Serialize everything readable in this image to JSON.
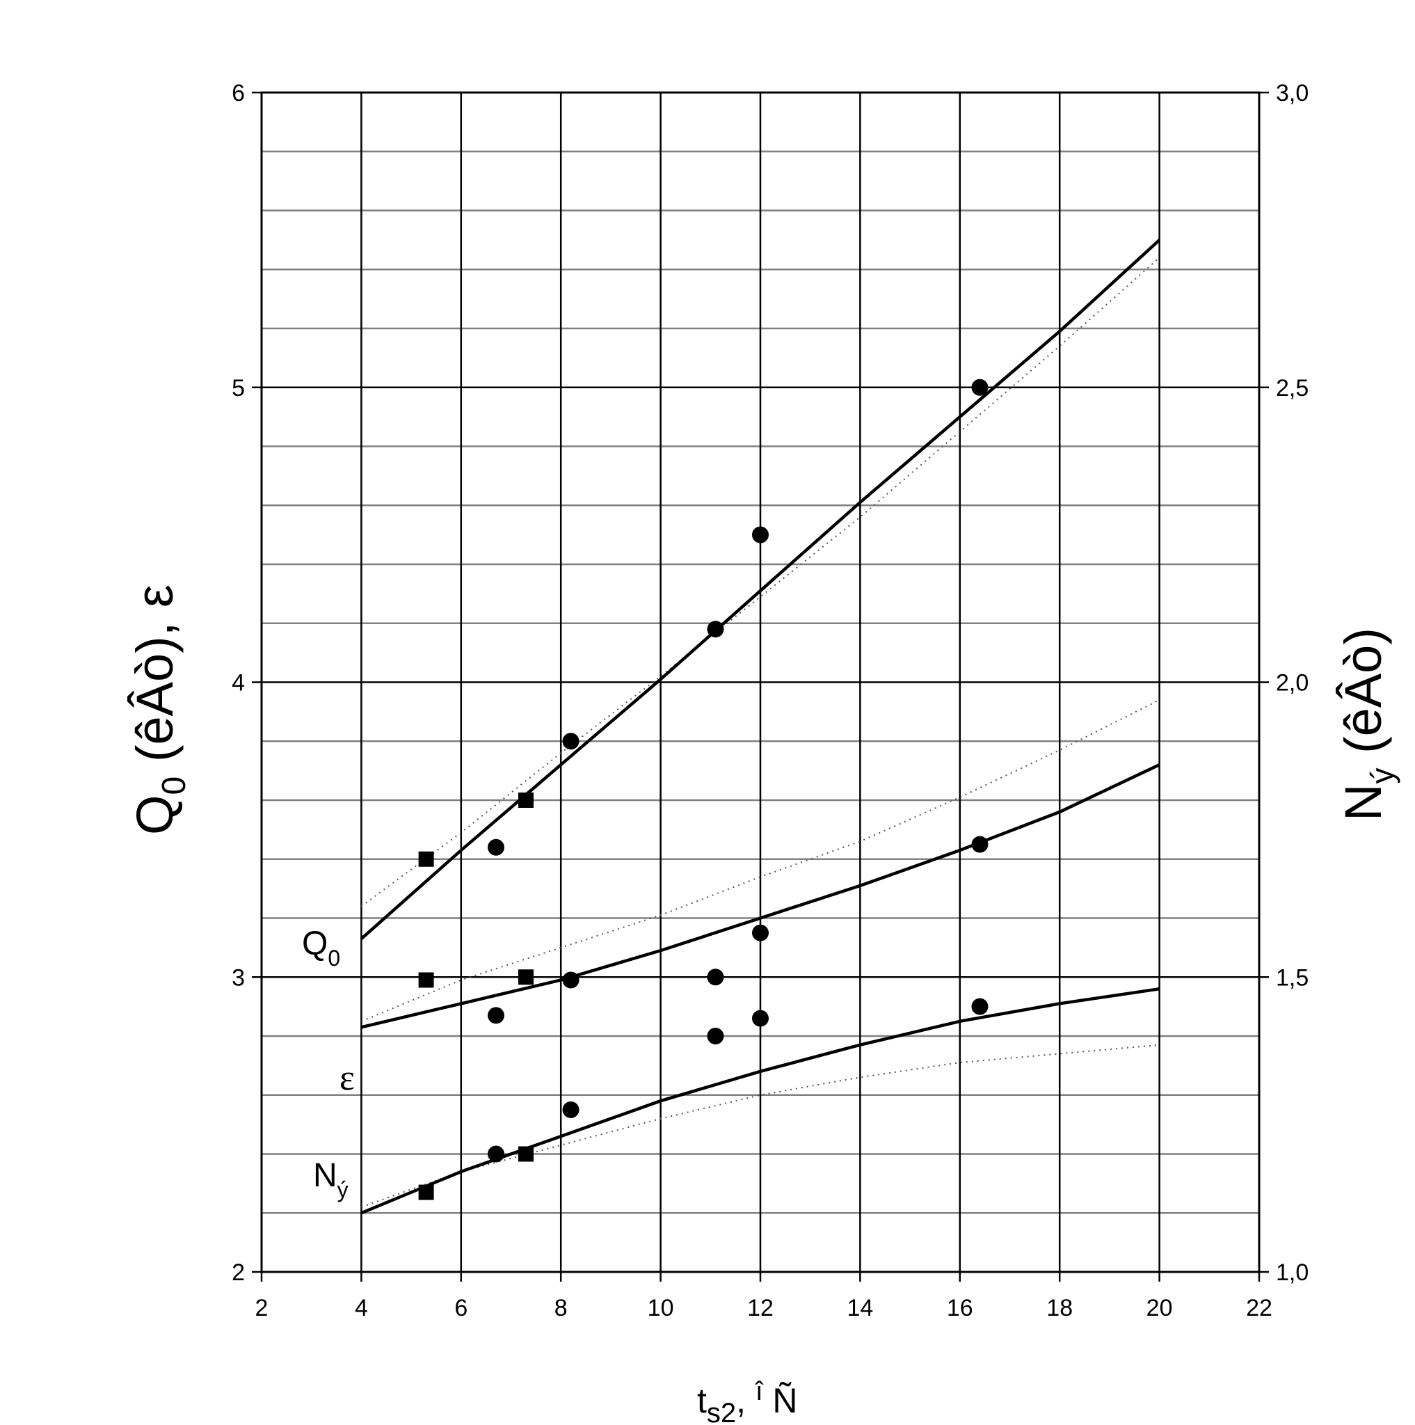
{
  "chart_data": {
    "type": "scatter",
    "x_axis": {
      "label_main": "t",
      "label_sub": "s2",
      "label_suffix": ", ",
      "label_sup": "î",
      "label_unit": " Ñ",
      "min": 2,
      "max": 22,
      "ticks": [
        2,
        4,
        6,
        8,
        10,
        12,
        14,
        16,
        18,
        20,
        22
      ],
      "tick_labels": [
        "2",
        "4",
        "6",
        "8",
        "10",
        "12",
        "14",
        "16",
        "18",
        "20",
        "22"
      ]
    },
    "y_left_axis": {
      "label_main": "Q",
      "label_sub": "0",
      "label_suffix": " (êÂò), ε",
      "min": 2,
      "max": 6,
      "ticks": [
        2,
        3,
        4,
        5,
        6
      ],
      "tick_labels": [
        "2",
        "3",
        "4",
        "5",
        "6"
      ],
      "minor_step": 0.2
    },
    "y_right_axis": {
      "label_main": "N",
      "label_sub": "ý",
      "label_suffix": " (êÂò)",
      "min": 1.0,
      "max": 3.0,
      "ticks": [
        1.0,
        1.5,
        2.0,
        2.5,
        3.0
      ],
      "tick_labels": [
        "1,0",
        "1,5",
        "2,0",
        "2,5",
        "3,0"
      ]
    },
    "grid": true,
    "series": [
      {
        "name": "Q0",
        "label_main": "Q",
        "label_sub": "0",
        "fit_solid": [
          [
            4,
            3.13
          ],
          [
            6,
            3.43
          ],
          [
            8,
            3.72
          ],
          [
            10,
            4.01
          ],
          [
            12,
            4.31
          ],
          [
            14,
            4.61
          ],
          [
            16,
            4.9
          ],
          [
            18,
            5.19
          ],
          [
            20,
            5.5
          ]
        ],
        "fit_dotted": [
          [
            4,
            3.24
          ],
          [
            6,
            3.49
          ],
          [
            8,
            3.76
          ],
          [
            10,
            4.02
          ],
          [
            12,
            4.29
          ],
          [
            14,
            4.56
          ],
          [
            16,
            4.85
          ],
          [
            18,
            5.14
          ],
          [
            20,
            5.44
          ]
        ],
        "points_square": [
          [
            5.3,
            3.4
          ],
          [
            7.3,
            3.6
          ]
        ],
        "points_circle": [
          [
            6.7,
            3.44
          ],
          [
            8.2,
            3.8
          ],
          [
            11.1,
            4.18
          ],
          [
            12.0,
            4.5
          ],
          [
            16.4,
            5.0
          ]
        ]
      },
      {
        "name": "ε",
        "label_main": "ε",
        "fit_solid": [
          [
            4,
            2.83
          ],
          [
            6,
            2.91
          ],
          [
            8,
            2.99
          ],
          [
            10,
            3.09
          ],
          [
            12,
            3.2
          ],
          [
            14,
            3.31
          ],
          [
            16,
            3.43
          ],
          [
            18,
            3.56
          ],
          [
            20,
            3.72
          ]
        ],
        "fit_dotted": [
          [
            4,
            2.85
          ],
          [
            6,
            2.99
          ],
          [
            8,
            3.1
          ],
          [
            10,
            3.21
          ],
          [
            12,
            3.34
          ],
          [
            14,
            3.46
          ],
          [
            16,
            3.61
          ],
          [
            18,
            3.77
          ],
          [
            20,
            3.94
          ]
        ],
        "points_square": [
          [
            5.3,
            2.99
          ],
          [
            7.3,
            3.0
          ]
        ],
        "points_circle": [
          [
            6.7,
            2.87
          ],
          [
            8.2,
            2.99
          ],
          [
            11.1,
            3.0
          ],
          [
            12.0,
            2.86
          ],
          [
            11.1,
            2.8
          ],
          [
            12.0,
            3.15
          ],
          [
            16.4,
            3.45
          ]
        ]
      },
      {
        "name": "Nэ",
        "label_main": "N",
        "label_sub": "ý",
        "axis": "right",
        "fit_solid": [
          [
            4,
            1.1
          ],
          [
            6,
            1.17
          ],
          [
            8,
            1.23
          ],
          [
            10,
            1.29
          ],
          [
            12,
            1.34
          ],
          [
            14,
            1.385
          ],
          [
            16,
            1.425
          ],
          [
            18,
            1.455
          ],
          [
            20,
            1.48
          ]
        ],
        "fit_dotted": [
          [
            4,
            1.11
          ],
          [
            6,
            1.17
          ],
          [
            8,
            1.215
          ],
          [
            10,
            1.26
          ],
          [
            12,
            1.3
          ],
          [
            14,
            1.33
          ],
          [
            16,
            1.355
          ],
          [
            18,
            1.37
          ],
          [
            20,
            1.385
          ]
        ],
        "points_square": [
          [
            5.3,
            1.135
          ],
          [
            7.3,
            1.2
          ]
        ],
        "points_circle": [
          [
            6.7,
            1.2
          ],
          [
            8.2,
            1.275
          ],
          [
            16.4,
            1.45
          ]
        ]
      }
    ]
  }
}
